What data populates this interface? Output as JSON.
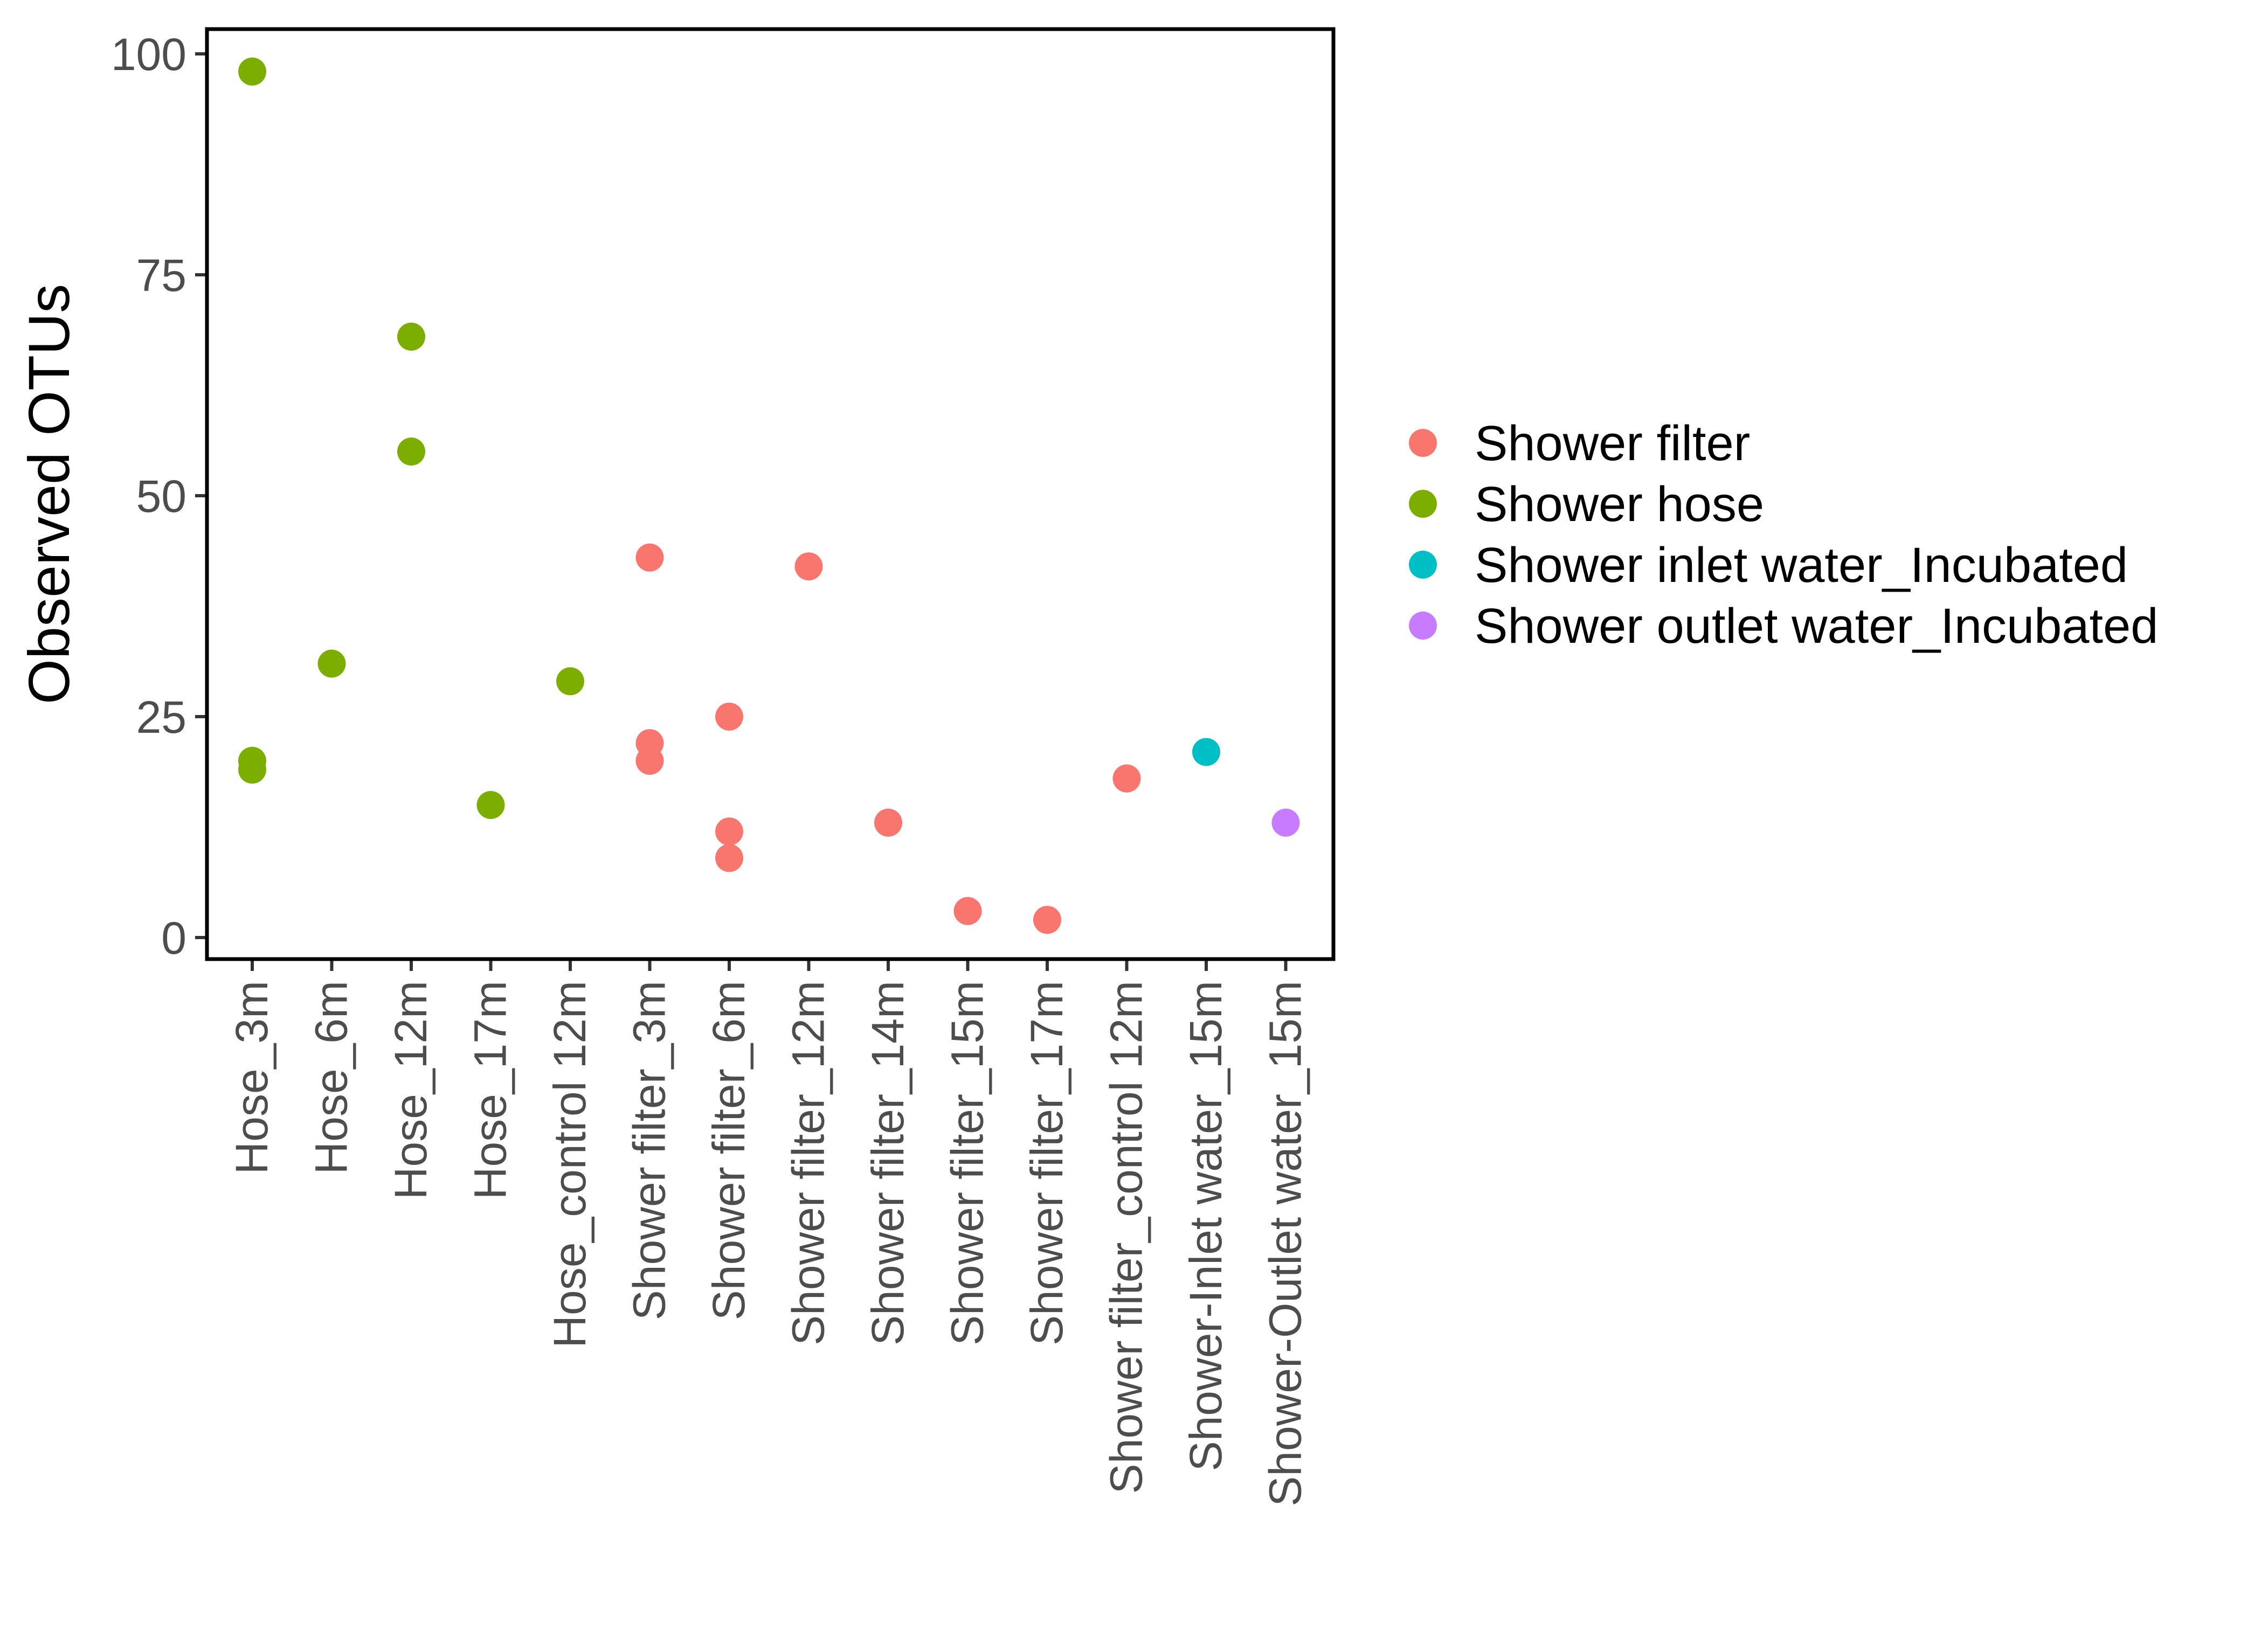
{
  "chart_data": {
    "type": "scatter",
    "title": "",
    "xlabel": "",
    "ylabel": "Observed OTUs",
    "ylim": [
      0,
      100
    ],
    "yticks": [
      0,
      25,
      50,
      75,
      100
    ],
    "categories": [
      "Hose_3m",
      "Hose_6m",
      "Hose_12m",
      "Hose_17m",
      "Hose_control 12m",
      "Shower filter_3m",
      "Shower filter_6m",
      "Shower filter_12m",
      "Shower filter_14m",
      "Shower filter_15m",
      "Shower filter_17m",
      "Shower filter_control 12m",
      "Shower-Inlet water_15m",
      "Shower-Outlet water_15m"
    ],
    "legend_position": "right",
    "series": [
      {
        "name": "Shower filter",
        "color": "#F8766D",
        "points": [
          {
            "x": "Shower filter_3m",
            "y": 43
          },
          {
            "x": "Shower filter_3m",
            "y": 22
          },
          {
            "x": "Shower filter_3m",
            "y": 20
          },
          {
            "x": "Shower filter_6m",
            "y": 25
          },
          {
            "x": "Shower filter_6m",
            "y": 12
          },
          {
            "x": "Shower filter_6m",
            "y": 9
          },
          {
            "x": "Shower filter_12m",
            "y": 42
          },
          {
            "x": "Shower filter_14m",
            "y": 13
          },
          {
            "x": "Shower filter_15m",
            "y": 3
          },
          {
            "x": "Shower filter_17m",
            "y": 2
          },
          {
            "x": "Shower filter_control 12m",
            "y": 18
          }
        ]
      },
      {
        "name": "Shower hose",
        "color": "#7CAE00",
        "points": [
          {
            "x": "Hose_3m",
            "y": 98
          },
          {
            "x": "Hose_3m",
            "y": 20
          },
          {
            "x": "Hose_3m",
            "y": 19
          },
          {
            "x": "Hose_6m",
            "y": 31
          },
          {
            "x": "Hose_12m",
            "y": 68
          },
          {
            "x": "Hose_12m",
            "y": 55
          },
          {
            "x": "Hose_17m",
            "y": 15
          },
          {
            "x": "Hose_control 12m",
            "y": 29
          }
        ]
      },
      {
        "name": "Shower inlet water_Incubated",
        "color": "#00BFC4",
        "points": [
          {
            "x": "Shower-Inlet water_15m",
            "y": 21
          }
        ]
      },
      {
        "name": "Shower outlet water_Incubated",
        "color": "#C77CFF",
        "points": [
          {
            "x": "Shower-Outlet water_15m",
            "y": 13
          }
        ]
      }
    ]
  }
}
